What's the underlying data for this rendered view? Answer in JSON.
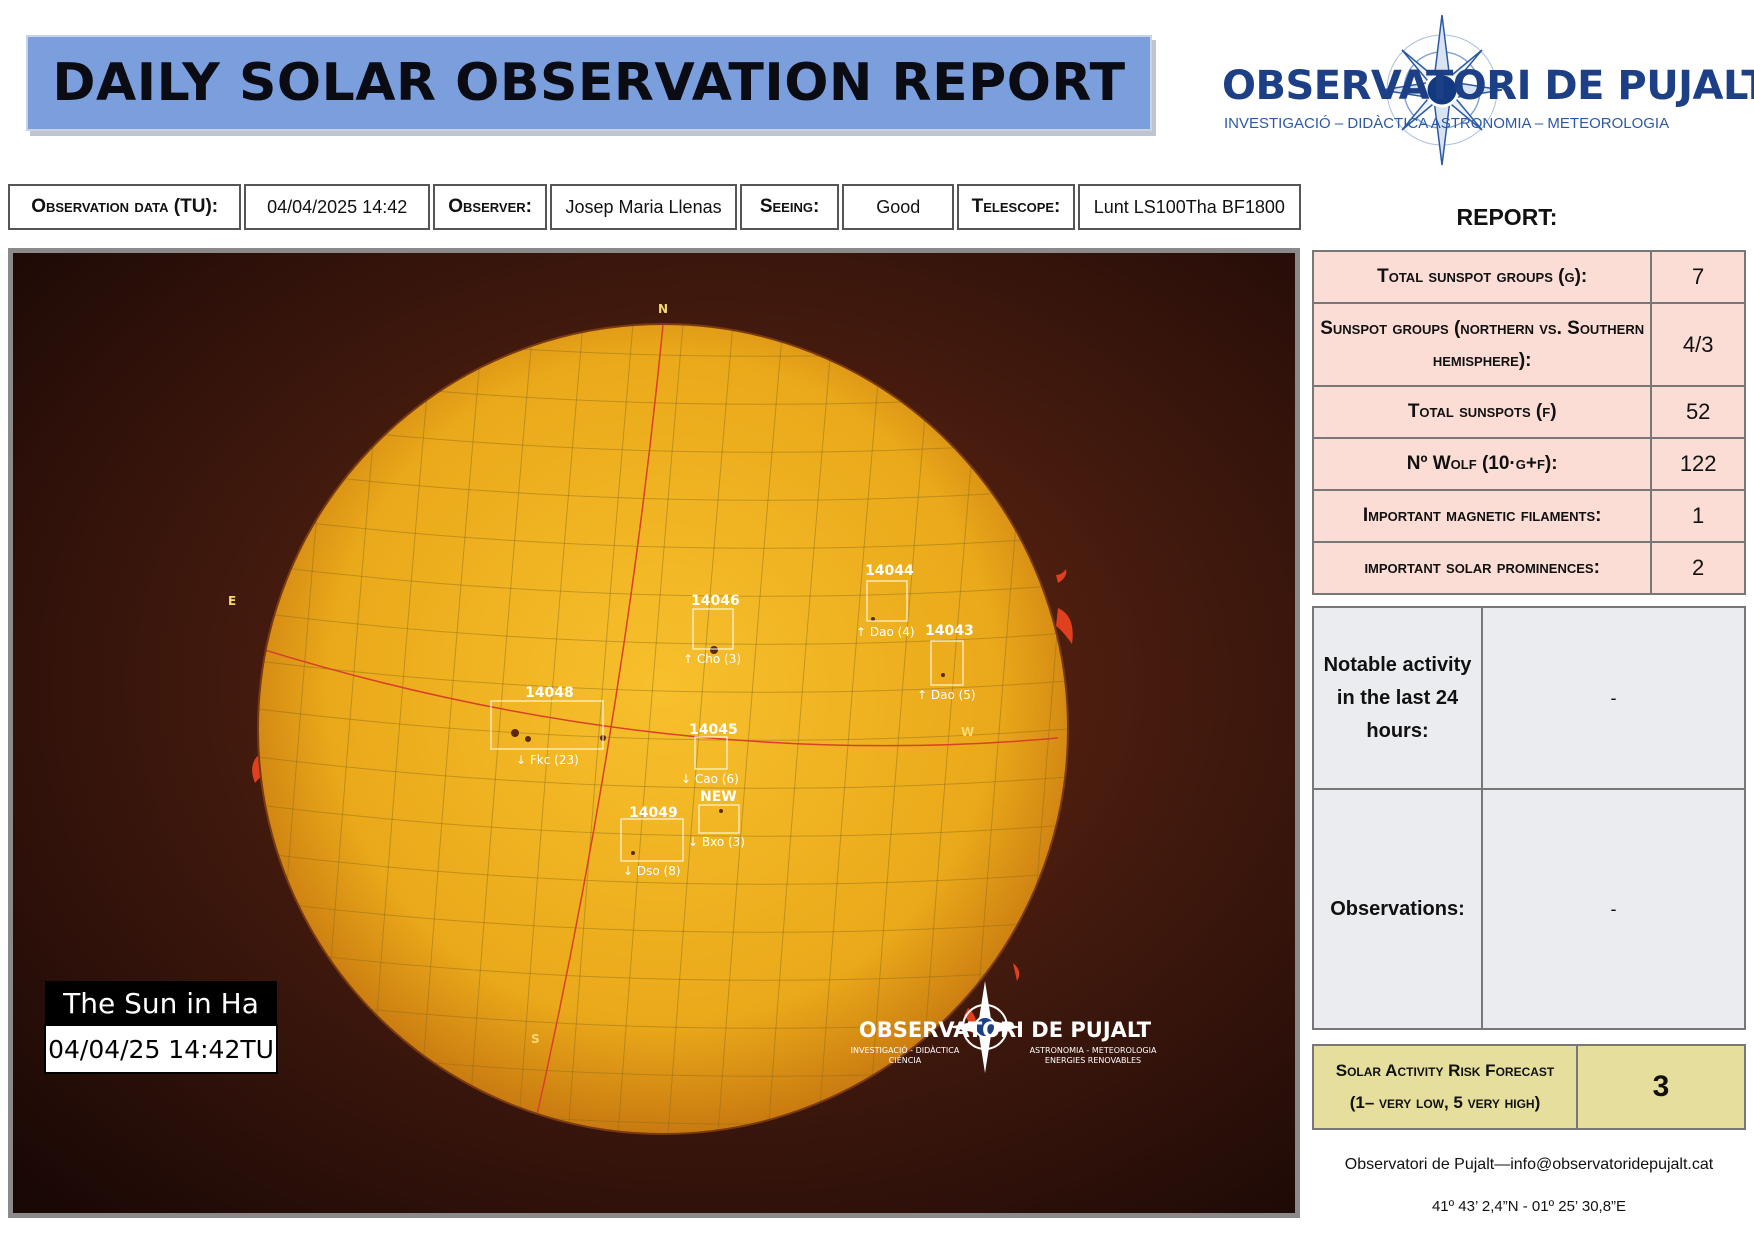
{
  "header": {
    "title": "DAILY SOLAR OBSERVATION REPORT"
  },
  "logo": {
    "name": "OBSERVATORI DE PUJALT",
    "subtitle": "INVESTIGACIÓ – DIDÀCTICA   ASTRONOMIA – METEOROLOGIA",
    "icon": "compass-star-icon"
  },
  "info": {
    "date_label": "Observation data (TU):",
    "date_value": "04/04/2025 14:42",
    "observer_label": "Observer:",
    "observer_value": "Josep Maria Llenas",
    "seeing_label": "Seeing:",
    "seeing_value": "Good",
    "telescope_label": "Telescope:",
    "telescope_value": "Lunt LS100Tha BF1800"
  },
  "sun_image": {
    "caption_title": "The Sun in Ha",
    "caption_date": "04/04/25 14:42TU",
    "watermark_name": "OBSERVATORI DE PUJALT",
    "watermark_left": "INVESTIGACIÓ - DIDÀCTICA",
    "watermark_left2": "CIÈNCIA",
    "watermark_right": "ASTRONOMIA - METEOROLOGIA",
    "watermark_right2": "ENERGIES RENOVABLES",
    "compass": {
      "n": "N",
      "s": "S",
      "e": "E",
      "w": "W"
    },
    "regions": [
      {
        "id": "14046",
        "label": "↑ Cho (3)"
      },
      {
        "id": "14044",
        "label": "↑ Dao (4)"
      },
      {
        "id": "14043",
        "label": "↑ Dao (5)"
      },
      {
        "id": "14048",
        "label": "↓ Fkc (23)"
      },
      {
        "id": "14045",
        "label": "↓ Cao (6)"
      },
      {
        "id": "NEW",
        "label": "↓ Bxo (3)"
      },
      {
        "id": "14049",
        "label": "↓ Dso (8)"
      }
    ],
    "colors": {
      "disk": "#e6a318",
      "background": "#3a160c",
      "prominence": "#e0401e"
    }
  },
  "report": {
    "title": "REPORT:",
    "rows": [
      {
        "label": "Total sunspot groups (g):",
        "value": "7"
      },
      {
        "label": "Sunspot groups (northern vs. Southern hemisphere):",
        "value": "4/3"
      },
      {
        "label": "Total sunspots (f)",
        "value": "52"
      },
      {
        "label": "Nº Wolf (10·g+f):",
        "value": "122"
      },
      {
        "label": "Important magnetic filaments:",
        "value": "1"
      },
      {
        "label": "important solar prominences:",
        "value": "2"
      }
    ]
  },
  "notes": {
    "activity_label": "Notable activity in the last 24 hours:",
    "activity_value": "-",
    "observations_label": "Observations:",
    "observations_value": "-"
  },
  "risk": {
    "label_line1": "Solar Activity Risk Forecast",
    "label_line2": "(1– very low, 5 very high)",
    "value": "3"
  },
  "footer": {
    "contact": "Observatori de Pujalt—info@observatoridepujalt.cat",
    "coords": "41º 43’ 2,4”N - 01º 25’ 30,8”E"
  }
}
